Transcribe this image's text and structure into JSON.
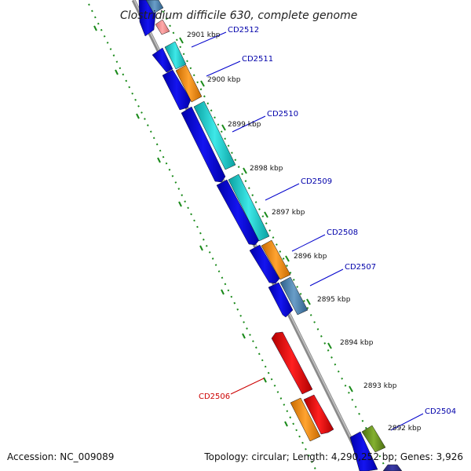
{
  "title": "Clostridium difficile 630, complete genome",
  "footer": {
    "accession": "Accession: NC_009089",
    "summary": "Topology: circular; Length: 4,290,252 bp; Genes: 3,926"
  },
  "colors": {
    "backbone": "#8a8a8a",
    "forward_label": "#0000aa",
    "reverse_label": "#cc0000",
    "ruler": "#1a8a1a"
  },
  "kbp_ticks": [
    "2901 kbp",
    "2900 kbp",
    "2899 kbp",
    "2898 kbp",
    "2897 kbp",
    "2896 kbp",
    "2895 kbp",
    "2894 kbp",
    "2893 kbp",
    "2892 kbp"
  ],
  "gene_labels": [
    {
      "name": "CD2512",
      "strand": "forward"
    },
    {
      "name": "CD2511",
      "strand": "forward"
    },
    {
      "name": "CD2510",
      "strand": "forward"
    },
    {
      "name": "CD2509",
      "strand": "forward"
    },
    {
      "name": "CD2508",
      "strand": "forward"
    },
    {
      "name": "CD2507",
      "strand": "forward"
    },
    {
      "name": "CD2506",
      "strand": "reverse"
    },
    {
      "name": "CD2504",
      "strand": "forward"
    }
  ]
}
